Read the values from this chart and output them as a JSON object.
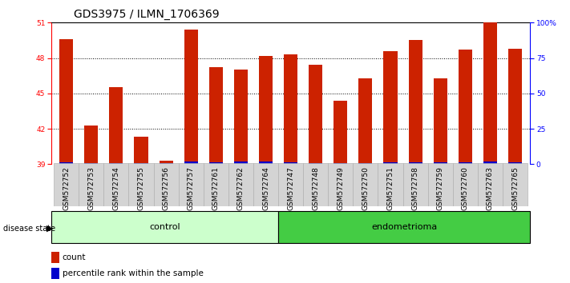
{
  "title": "GDS3975 / ILMN_1706369",
  "samples": [
    "GSM572752",
    "GSM572753",
    "GSM572754",
    "GSM572755",
    "GSM572756",
    "GSM572757",
    "GSM572761",
    "GSM572762",
    "GSM572764",
    "GSM572747",
    "GSM572748",
    "GSM572749",
    "GSM572750",
    "GSM572751",
    "GSM572758",
    "GSM572759",
    "GSM572760",
    "GSM572763",
    "GSM572765"
  ],
  "red_values": [
    49.6,
    42.3,
    45.5,
    41.3,
    39.3,
    50.4,
    47.2,
    47.0,
    48.2,
    48.3,
    47.4,
    44.4,
    46.3,
    48.6,
    49.5,
    46.3,
    48.7,
    51.0,
    48.8
  ],
  "blue_values": [
    0.18,
    0.12,
    0.12,
    0.12,
    0.12,
    0.22,
    0.15,
    0.2,
    0.2,
    0.15,
    0.12,
    0.12,
    0.12,
    0.15,
    0.18,
    0.15,
    0.15,
    0.22,
    0.15
  ],
  "baseline": 39,
  "ylim_left": [
    39,
    51
  ],
  "ylim_right": [
    0,
    100
  ],
  "yticks_left": [
    39,
    42,
    45,
    48,
    51
  ],
  "yticks_right": [
    0,
    25,
    50,
    75,
    100
  ],
  "ytick_right_labels": [
    "0",
    "25",
    "50",
    "75",
    "100%"
  ],
  "bar_color_red": "#cc2200",
  "bar_color_blue": "#0000cc",
  "bar_width": 0.55,
  "control_count": 9,
  "endometrioma_count": 10,
  "control_label": "control",
  "endometrioma_label": "endometrioma",
  "disease_state_label": "disease state",
  "legend_count": "count",
  "legend_percentile": "percentile rank within the sample",
  "bg_color_xticklabels": "#d4d4d4",
  "bg_color_control": "#ccffcc",
  "bg_color_endometrioma": "#44cc44",
  "title_fontsize": 10,
  "tick_fontsize": 6.5,
  "label_fontsize": 8
}
